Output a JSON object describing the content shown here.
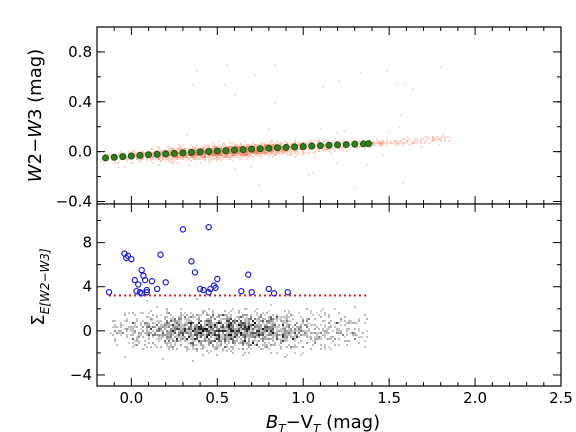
{
  "chart_data": [
    {
      "type": "scatter",
      "panel": "top",
      "ylabel": "W2−W3 (mag)",
      "ylabel_parts": {
        "a": "W",
        "b": "2−",
        "c": "W",
        "d": "3",
        "e": " (mag)"
      },
      "xlim": [
        -0.2,
        2.5
      ],
      "ylim": [
        -0.42,
        1.0
      ],
      "yticks": [
        -0.4,
        0.0,
        0.4,
        0.8
      ],
      "ytick_labels": [
        "−0.4",
        "0.0",
        "0.4",
        "0.8"
      ],
      "density": {
        "description_color": "#f4825f",
        "cloud": {
          "x_center": 0.55,
          "x_spread": 0.28,
          "y_intercept": -0.04,
          "slope": 0.075,
          "y_spread": 0.025
        },
        "tail_x_range": [
          1.4,
          1.85
        ]
      },
      "series": [
        {
          "name": "",
          "marker": "circle",
          "color": "#2e7d1f",
          "edge": "#1a4a10",
          "x": [
            -0.15,
            -0.1,
            -0.05,
            0.0,
            0.05,
            0.1,
            0.15,
            0.2,
            0.25,
            0.3,
            0.35,
            0.4,
            0.45,
            0.5,
            0.55,
            0.6,
            0.65,
            0.7,
            0.75,
            0.8,
            0.85,
            0.9,
            0.95,
            1.0,
            1.05,
            1.1,
            1.15,
            1.2,
            1.25,
            1.3,
            1.35,
            1.38
          ],
          "y": [
            -0.05,
            -0.045,
            -0.04,
            -0.035,
            -0.03,
            -0.025,
            -0.022,
            -0.018,
            -0.014,
            -0.01,
            -0.006,
            -0.002,
            0.001,
            0.005,
            0.008,
            0.012,
            0.016,
            0.02,
            0.023,
            0.027,
            0.031,
            0.034,
            0.038,
            0.041,
            0.045,
            0.048,
            0.051,
            0.054,
            0.057,
            0.06,
            0.062,
            0.064
          ]
        }
      ]
    },
    {
      "type": "scatter",
      "panel": "bottom",
      "ylabel": "Σ_E[W2−W3]",
      "ylabel_parts": {
        "sigma": "Σ",
        "sub": "E[W2−W3]"
      },
      "xlabel": "BT−VT (mag)",
      "xlabel_parts": {
        "a": "B",
        "a_sub": "T",
        "b": "−V",
        "b_sub": "T",
        "c": " (mag)"
      },
      "xlim": [
        -0.2,
        2.5
      ],
      "ylim": [
        -5,
        11.5
      ],
      "xticks": [
        0.0,
        0.5,
        1.0,
        1.5,
        2.0,
        2.5
      ],
      "xtick_labels": [
        "0.0",
        "0.5",
        "1.0",
        "1.5",
        "2.0",
        "2.5"
      ],
      "yticks": [
        -4,
        0,
        4,
        8
      ],
      "ytick_labels": [
        "−4",
        "0",
        "4",
        "8"
      ],
      "threshold": {
        "y": 3.2,
        "x_range": [
          -0.2,
          1.38
        ],
        "color": "#d62020",
        "style": "dotted"
      },
      "density": {
        "description_color": "#000000",
        "cloud": {
          "x_center": 0.55,
          "x_spread": 0.3,
          "y_center": 0.0,
          "y_spread": 0.8
        }
      },
      "series": [
        {
          "name": "",
          "marker": "open-circle",
          "color": "#1a1adf",
          "x": [
            -0.13,
            -0.04,
            -0.02,
            -0.03,
            0.0,
            0.02,
            0.04,
            0.06,
            0.07,
            0.08,
            0.09,
            0.05,
            0.03,
            0.12,
            0.15,
            0.17,
            0.2,
            0.3,
            0.35,
            0.37,
            0.4,
            0.42,
            0.45,
            0.46,
            0.48,
            0.5,
            0.49,
            0.45,
            0.68,
            0.7,
            0.64,
            0.8,
            0.83,
            0.91,
            0.06,
            0.09
          ],
          "y": [
            3.5,
            7.0,
            6.8,
            6.6,
            6.5,
            4.6,
            4.2,
            5.5,
            5.0,
            4.6,
            3.7,
            3.5,
            3.6,
            4.5,
            3.8,
            6.9,
            4.4,
            9.2,
            6.3,
            5.3,
            3.8,
            3.7,
            9.4,
            3.8,
            4.1,
            4.7,
            3.9,
            3.5,
            5.1,
            3.5,
            3.6,
            3.8,
            3.4,
            3.5,
            3.4,
            3.5
          ]
        }
      ]
    }
  ]
}
